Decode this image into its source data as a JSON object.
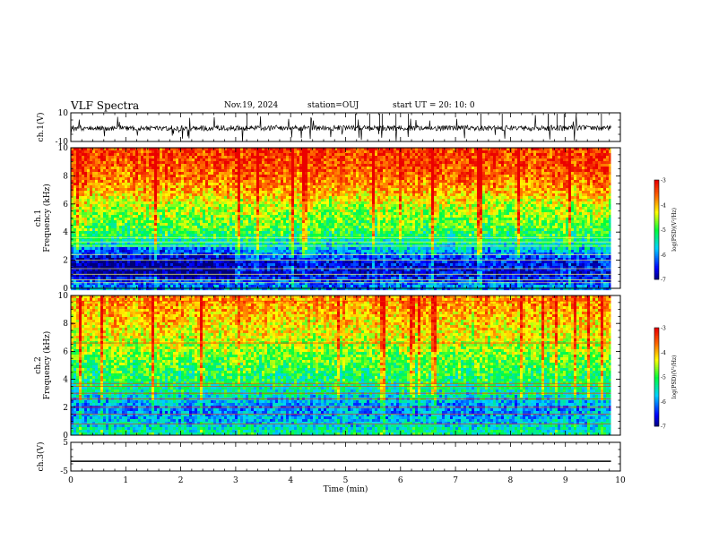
{
  "header": {
    "title": "VLF Spectra",
    "date": "Nov.19, 2024",
    "station": "station=OUJ",
    "start": "start  UT =   20: 10: 0"
  },
  "chart_data": [
    {
      "type": "line",
      "panel": "ch1-waveform",
      "ylabel": "ch.1(V)",
      "yticks": [
        "10",
        "-10"
      ],
      "ylim": [
        -10,
        10
      ],
      "xlim": [
        0,
        10
      ],
      "data_extent_min": [
        0,
        9.83
      ]
    },
    {
      "type": "heatmap",
      "panel": "ch1-spectrogram",
      "ylabel": "ch.1\nFrequency (kHz)",
      "ylabel_line1": "ch.1",
      "ylabel_line2": "Frequency (kHz)",
      "yticks": [
        "0",
        "2",
        "4",
        "6",
        "8",
        "10"
      ],
      "ylim": [
        0,
        10
      ],
      "xlim": [
        0,
        10
      ],
      "colorbar": {
        "label": "log(PSD)(V²/Hz)",
        "ticks": [
          "-3",
          "-4",
          "-5",
          "-6",
          "-7"
        ],
        "range": [
          -7,
          -3
        ]
      },
      "psd_profile_kHz": [
        0,
        1,
        2,
        3,
        4,
        5,
        6,
        7,
        8,
        9,
        10
      ],
      "psd_profile_log": [
        -5.8,
        -6.6,
        -6.5,
        -5.6,
        -5.0,
        -4.7,
        -4.4,
        -3.9,
        -3.6,
        -3.4,
        -3.3
      ]
    },
    {
      "type": "heatmap",
      "panel": "ch2-spectrogram",
      "ylabel": "ch.2\nFrequency (kHz)",
      "ylabel_line1": "ch.2",
      "ylabel_line2": "Frequency (kHz)",
      "yticks": [
        "0",
        "2",
        "4",
        "6",
        "8",
        "10"
      ],
      "ylim": [
        0,
        10
      ],
      "xlim": [
        0,
        10
      ],
      "colorbar": {
        "label": "log(PSD)(V²/Hz)",
        "ticks": [
          "-3",
          "-4",
          "-5",
          "-6",
          "-7"
        ],
        "range": [
          -7,
          -3
        ]
      },
      "psd_profile_kHz": [
        0,
        1,
        2,
        3,
        4,
        5,
        6,
        7,
        8,
        9,
        10
      ],
      "psd_profile_log": [
        -5.2,
        -5.8,
        -6.0,
        -5.4,
        -5.1,
        -4.9,
        -4.6,
        -4.3,
        -4.1,
        -3.9,
        -3.8
      ]
    },
    {
      "type": "line",
      "panel": "ch3-waveform",
      "ylabel": "ch.3(V)",
      "yticks": [
        "5",
        "-5"
      ],
      "ylim": [
        -5,
        5
      ],
      "xlim": [
        0,
        10
      ],
      "series": [
        {
          "x": [
            0,
            9.83
          ],
          "y": [
            -1.6,
            -1.6
          ]
        }
      ],
      "xlabel": "Time (min)",
      "xticks": [
        "0",
        "1",
        "2",
        "3",
        "4",
        "5",
        "6",
        "7",
        "8",
        "9",
        "10"
      ]
    }
  ]
}
